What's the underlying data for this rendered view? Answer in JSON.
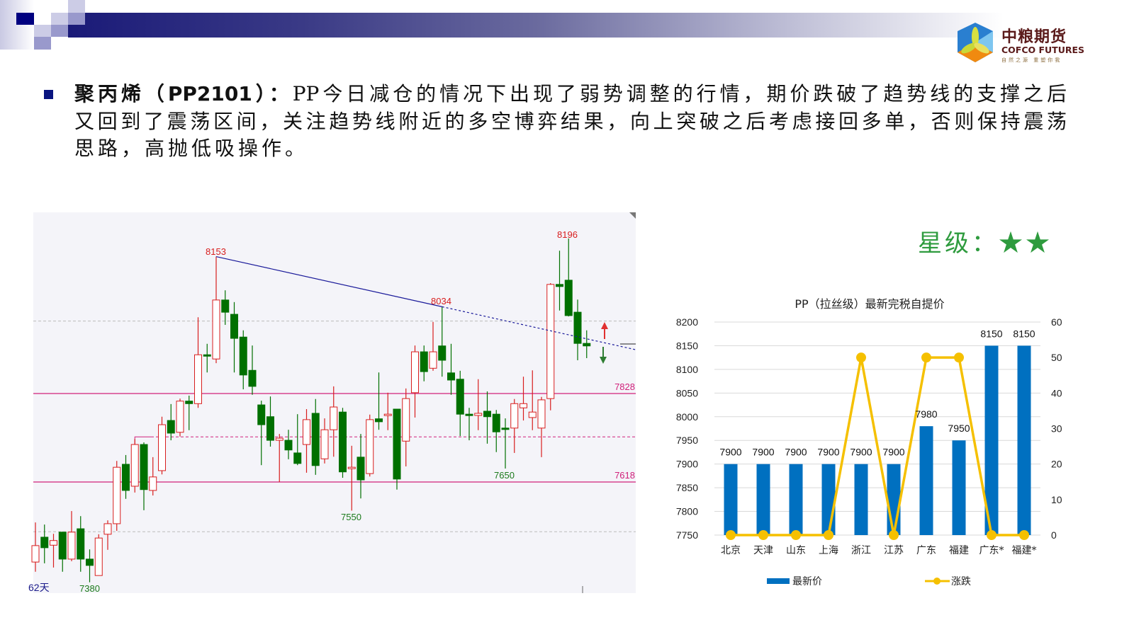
{
  "header": {
    "logo": {
      "cn": "中粮期货",
      "en": "COFCO FUTURES",
      "slogan": "自然之源 重塑你我"
    }
  },
  "commentary": {
    "title": "聚丙烯（PP2101）：",
    "lines": [
      "PP今日减仓的情况下出现了弱势调整的行情，期价跌破了趋势线的支撑之后",
      "又回到了震荡区间，关注趋势线附近的多空博弈结果，向上突破之后考虑接回多单，否则保持震荡",
      "思路，高抛低吸操作。"
    ]
  },
  "rating": {
    "label": "星级：",
    "stars": "★★",
    "value": 2,
    "color": "#2e9b3e"
  },
  "colors": {
    "up": "#d81e1e",
    "down": "#007000",
    "level_line": "#d0207a",
    "trendline": "#1a1a9a",
    "bar": "#0070c0",
    "line": "#f5c000"
  },
  "chart_data": [
    {
      "type": "candlestick",
      "period_label": "62天",
      "annotations": {
        "high1": "8153",
        "high2": "8034",
        "high3": "8196",
        "low1": "7380",
        "low2": "7550",
        "low3": "7650"
      },
      "levels": {
        "resistance": "7828",
        "support": "7618",
        "middle": 7725
      },
      "gridlines": [
        8000,
        7500
      ],
      "trendline": {
        "from": {
          "index": 20,
          "price": 8153
        },
        "to": {
          "index": 45,
          "price": 8034
        }
      },
      "ohlc": [
        [
          7428,
          7522,
          7405,
          7467
        ],
        [
          7487,
          7517,
          7425,
          7462
        ],
        [
          7468,
          7495,
          7415,
          7479
        ],
        [
          7499,
          7500,
          7405,
          7435
        ],
        [
          7435,
          7549,
          7430,
          7499
        ],
        [
          7507,
          7537,
          7405,
          7435
        ],
        [
          7435,
          7458,
          7380,
          7420
        ],
        [
          7396,
          7494,
          7396,
          7485
        ],
        [
          7494,
          7527,
          7457,
          7519
        ],
        [
          7519,
          7668,
          7502,
          7653
        ],
        [
          7660,
          7682,
          7578,
          7598
        ],
        [
          7608,
          7720,
          7593,
          7707
        ],
        [
          7707,
          7712,
          7551,
          7600
        ],
        [
          7598,
          7677,
          7586,
          7630
        ],
        [
          7645,
          7773,
          7636,
          7754
        ],
        [
          7764,
          7803,
          7717,
          7734
        ],
        [
          7736,
          7816,
          7726,
          7810
        ],
        [
          7810,
          7823,
          7741,
          7804
        ],
        [
          7804,
          8009,
          7794,
          7920
        ],
        [
          7920,
          7946,
          7878,
          7917
        ],
        [
          7910,
          8153,
          7900,
          8050
        ],
        [
          8050,
          8073,
          7991,
          8021
        ],
        [
          8016,
          8045,
          7878,
          7959
        ],
        [
          7962,
          7978,
          7838,
          7872
        ],
        [
          7883,
          7942,
          7825,
          7845
        ],
        [
          7801,
          7811,
          7658,
          7754
        ],
        [
          7773,
          7821,
          7702,
          7717
        ],
        [
          7717,
          7732,
          7618,
          7722
        ],
        [
          7717,
          7742,
          7672,
          7694
        ],
        [
          7687,
          7779,
          7658,
          7662
        ],
        [
          7707,
          7791,
          7640,
          7766
        ],
        [
          7781,
          7815,
          7635,
          7657
        ],
        [
          7673,
          7769,
          7662,
          7742
        ],
        [
          7742,
          7845,
          7678,
          7796
        ],
        [
          7784,
          7794,
          7628,
          7642
        ],
        [
          7650,
          7704,
          7550,
          7653
        ],
        [
          7677,
          7732,
          7579,
          7623
        ],
        [
          7638,
          7778,
          7631,
          7766
        ],
        [
          7768,
          7878,
          7742,
          7761
        ],
        [
          7776,
          7830,
          7741,
          7779
        ],
        [
          7791,
          7791,
          7600,
          7625
        ],
        [
          7715,
          7840,
          7655,
          7816
        ],
        [
          7830,
          7942,
          7771,
          7927
        ],
        [
          7927,
          7942,
          7857,
          7880
        ],
        [
          7888,
          7998,
          7882,
          7927
        ],
        [
          7941,
          8034,
          7868,
          7907
        ],
        [
          7877,
          7946,
          7825,
          7860
        ],
        [
          7862,
          7882,
          7727,
          7779
        ],
        [
          7779,
          7794,
          7717,
          7776
        ],
        [
          7776,
          7862,
          7741,
          7781
        ],
        [
          7786,
          7833,
          7709,
          7773
        ],
        [
          7779,
          7789,
          7689,
          7737
        ],
        [
          7746,
          7769,
          7650,
          7744
        ],
        [
          7746,
          7815,
          7687,
          7804
        ],
        [
          7794,
          7868,
          7764,
          7804
        ],
        [
          7771,
          7883,
          7741,
          7784
        ],
        [
          7746,
          7820,
          7677,
          7813
        ],
        [
          7816,
          8090,
          7788,
          8087
        ],
        [
          8087,
          8167,
          8025,
          8082
        ],
        [
          8097,
          8196,
          8011,
          8013
        ],
        [
          8021,
          8051,
          7907,
          7947
        ],
        [
          7947,
          7978,
          7912,
          7941
        ]
      ]
    },
    {
      "type": "bar+line",
      "title": "PP（拉丝级）最新完税自提价",
      "categories": [
        "北京",
        "天津",
        "山东",
        "上海",
        "浙江",
        "江苏",
        "广东",
        "福建",
        "广东*",
        "福建*"
      ],
      "series": [
        {
          "name": "最新价",
          "type": "bar",
          "axis": "left",
          "values": [
            7900,
            7900,
            7900,
            7900,
            7900,
            7900,
            7980,
            7950,
            8150,
            8150
          ]
        },
        {
          "name": "涨跌",
          "type": "line",
          "axis": "right",
          "values": [
            0,
            0,
            0,
            0,
            50,
            0,
            50,
            50,
            0,
            0
          ]
        }
      ],
      "left_axis": {
        "min": 7750,
        "max": 8200,
        "ticks": [
          "7750",
          "7800",
          "7850",
          "7900",
          "7950",
          "8000",
          "8050",
          "8100",
          "8150",
          "8200"
        ]
      },
      "right_axis": {
        "min": 0,
        "max": 60,
        "ticks": [
          "0",
          "10",
          "20",
          "30",
          "40",
          "50",
          "60"
        ]
      },
      "grid": true,
      "legend": "bottom"
    }
  ]
}
